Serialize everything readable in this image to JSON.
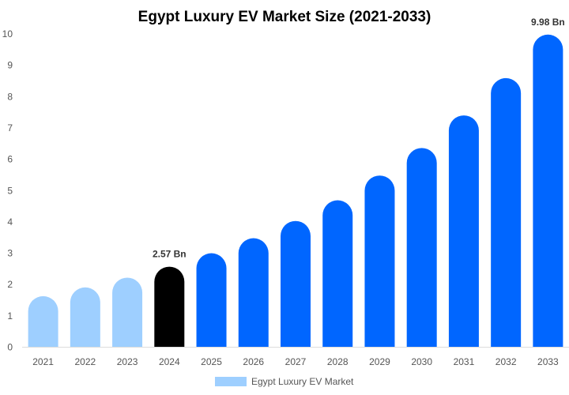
{
  "chart_data": {
    "type": "bar",
    "title": "Egypt Luxury EV Market Size (2021-2033)",
    "categories": [
      "2021",
      "2022",
      "2023",
      "2024",
      "2025",
      "2026",
      "2027",
      "2028",
      "2029",
      "2030",
      "2031",
      "2032",
      "2033"
    ],
    "series": [
      {
        "name": "Egypt Luxury EV Market",
        "values": [
          1.63,
          1.91,
          2.22,
          2.57,
          3.0,
          3.48,
          4.03,
          4.69,
          5.48,
          6.36,
          7.4,
          8.59,
          9.98
        ]
      }
    ],
    "data_labels": {
      "3": "2.57 Bn",
      "12": "9.98 Bn"
    },
    "bar_colors": [
      "#9ECFFF",
      "#9ECFFF",
      "#9ECFFF",
      "#000000",
      "#0066FF",
      "#0066FF",
      "#0066FF",
      "#0066FF",
      "#0066FF",
      "#0066FF",
      "#0066FF",
      "#0066FF",
      "#0066FF"
    ],
    "legend_color": "#9ECFFF",
    "ylim": [
      0,
      10
    ],
    "yticks": [
      0,
      1,
      2,
      3,
      4,
      5,
      6,
      7,
      8,
      9,
      10
    ],
    "xlabel": "",
    "ylabel": "",
    "grid": false,
    "legend_position": "bottom"
  }
}
